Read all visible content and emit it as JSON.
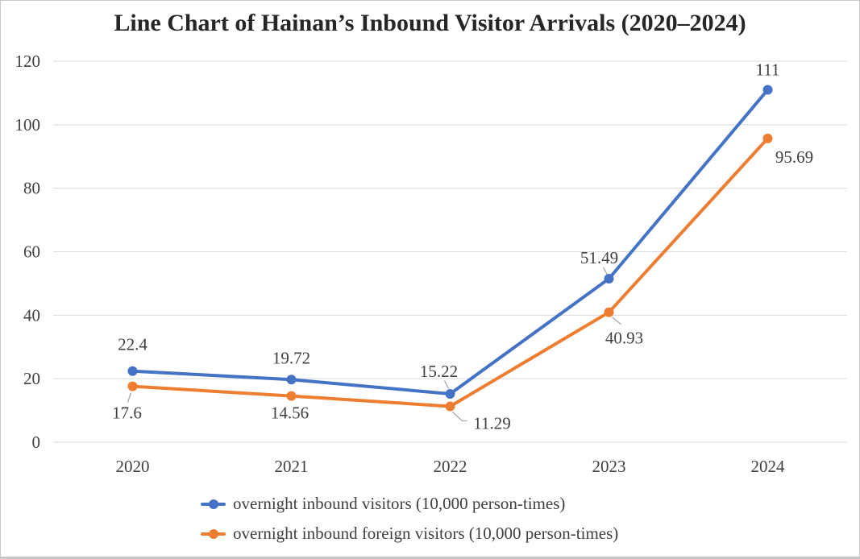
{
  "chart_data": {
    "type": "line",
    "title": "Line Chart of Hainan’s Inbound Visitor Arrivals (2020–2024)",
    "categories": [
      "2020",
      "2021",
      "2022",
      "2023",
      "2024"
    ],
    "series": [
      {
        "name": "overnight inbound visitors (10,000 person-times)",
        "color": "#4472C4",
        "values": [
          22.4,
          19.72,
          15.22,
          51.49,
          111
        ],
        "point_labels": [
          "22.4",
          "19.72",
          "15.22",
          "51.49",
          "111"
        ]
      },
      {
        "name": "overnight inbound foreign visitors (10,000 person-times)",
        "color": "#ED7D31",
        "values": [
          17.6,
          14.56,
          11.29,
          40.93,
          95.69
        ],
        "point_labels": [
          "17.6",
          "14.56",
          "11.29",
          "40.93",
          "95.69"
        ]
      }
    ],
    "ylim": [
      0,
      120
    ],
    "yticks": [
      0,
      20,
      40,
      60,
      80,
      100,
      120
    ],
    "xlabel": "",
    "ylabel": "",
    "grid": true,
    "legend_position": "bottom",
    "colors": {
      "grid": "#D9D9D9",
      "axis_text": "#404040",
      "data_label_text": "#404040",
      "leader_line": "#A6A6A6",
      "title_text": "#262626",
      "frame_border": "#C8C8C8",
      "background": "#FFFFFF"
    }
  }
}
